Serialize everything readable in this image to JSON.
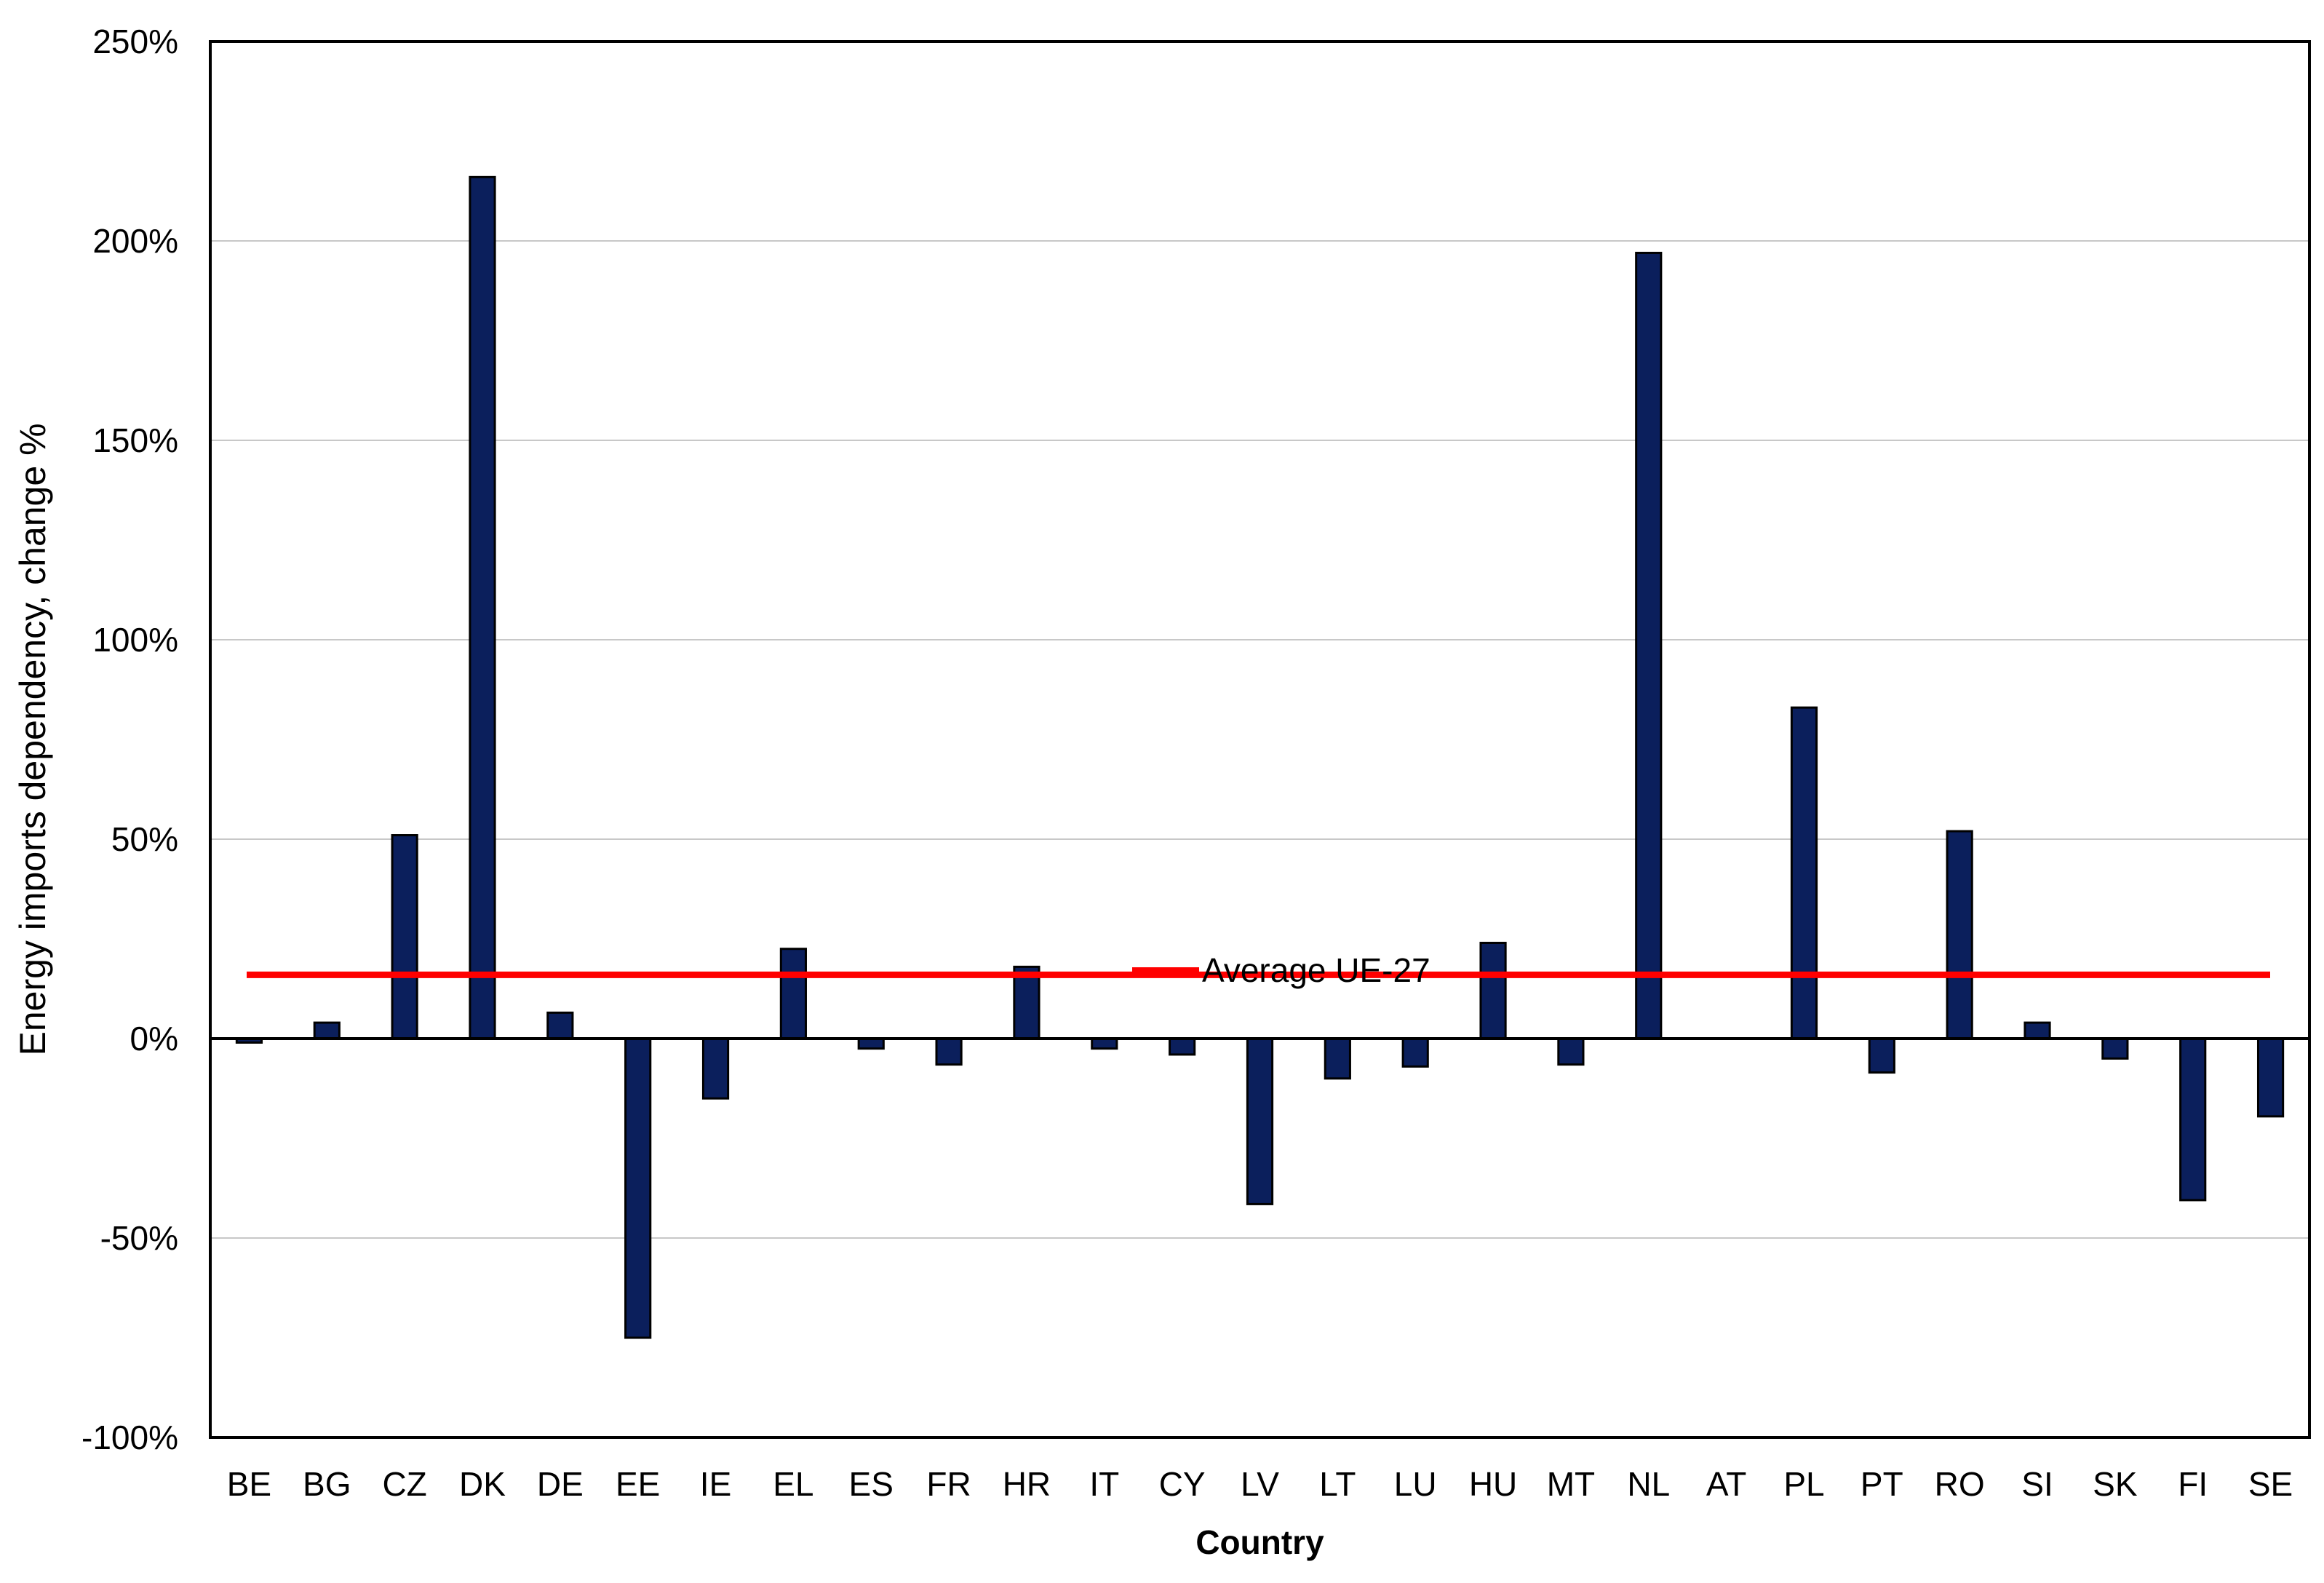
{
  "chart_data": {
    "type": "bar",
    "xlabel": "Country",
    "ylabel": "Energy imports dependency, change %",
    "ylim": [
      -100,
      250
    ],
    "ytick_step": 50,
    "y_format": "percent",
    "grid": true,
    "categories": [
      "BE",
      "BG",
      "CZ",
      "DK",
      "DE",
      "EE",
      "IE",
      "EL",
      "ES",
      "FR",
      "HR",
      "IT",
      "CY",
      "LV",
      "LT",
      "LU",
      "HU",
      "MT",
      "NL",
      "AT",
      "PL",
      "PT",
      "RO",
      "SI",
      "SK",
      "FI",
      "SE"
    ],
    "series": [
      {
        "values": [
          -1,
          4,
          51,
          216,
          6.5,
          -75,
          -15,
          22.5,
          -2.5,
          -6.5,
          18,
          -2.5,
          -4,
          -41.5,
          -10,
          -7,
          24,
          -6.5,
          197,
          0,
          83,
          -8.5,
          52,
          4,
          -5,
          -40.5,
          -19.5
        ],
        "color": "#0b1f5c"
      }
    ],
    "reference_line": {
      "name": "Average UE-27",
      "value": 16,
      "color": "#ff0000"
    },
    "legend_placement": "inside-center"
  }
}
